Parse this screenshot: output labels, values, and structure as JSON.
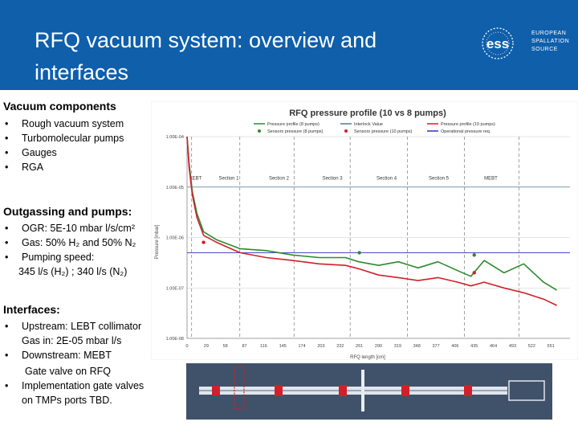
{
  "slide": {
    "title": "RFQ vacuum system: overview and interfaces",
    "logo_text": "ess",
    "logo_name": "EUROPEAN SPALLATION SOURCE",
    "colors": {
      "header": "#0f5fab",
      "accent": "#2e7fc4"
    }
  },
  "components": {
    "heading": "Vacuum components",
    "items": [
      "Rough vacuum system",
      "Turbomolecular pumps",
      "Gauges",
      "RGA"
    ]
  },
  "outgassing": {
    "heading": "Outgassing and pumps:",
    "ogr": "OGR: 5E-10 mbar l/s/cm²",
    "gas": "Gas: 50% H₂ and 50% N₂",
    "speed": "Pumping speed:",
    "speed_values": "345 l/s (H₂) ; 340 l/s (N₂)"
  },
  "interfaces": {
    "heading": "Interfaces:",
    "upstream": "Upstream: LEBT collimator",
    "upstream_gas": "Gas in: 2E-05 mbar l/s",
    "downstream": "Downstream: MEBT",
    "gate_valve": "Gate valve on RFQ",
    "implementation": "Implementation gate valves",
    "implementation_2": "on TMPs ports TBD."
  },
  "chart_data": {
    "type": "line",
    "title": "RFQ pressure profile (10 vs 8 pumps)",
    "xlabel": "RFQ length [cm]",
    "ylabel": "Pressure [mbar]",
    "yscale": "log",
    "ylim": [
      1e-08,
      0.0001
    ],
    "xlim": [
      0,
      580
    ],
    "x_ticks": [
      "0",
      "29",
      "58",
      "87",
      "116",
      "145",
      "174",
      "203",
      "232",
      "261",
      "290",
      "319",
      "348",
      "377",
      "406",
      "435",
      "464",
      "493",
      "522",
      "551"
    ],
    "y_ticks": [
      "1.00E-04",
      "1.00E-05",
      "1.00E-06",
      "1.00E-07",
      "1.00E-08"
    ],
    "section_boundaries": [
      7,
      80,
      162,
      247,
      334,
      420,
      503
    ],
    "sections": [
      {
        "label": "LEBT",
        "x": 4
      },
      {
        "label": "Section 1",
        "x": 48
      },
      {
        "label": "Section 2",
        "x": 124
      },
      {
        "label": "Section 3",
        "x": 205
      },
      {
        "label": "Section 4",
        "x": 287
      },
      {
        "label": "Section 5",
        "x": 366
      },
      {
        "label": "MEBT",
        "x": 450
      }
    ],
    "legend": [
      {
        "name": "Pressure profile (8 pumps)",
        "color": "#2e8b2e",
        "kind": "line"
      },
      {
        "name": "Interlock Value",
        "color": "#4d7a8c",
        "kind": "line"
      },
      {
        "name": "Pressure profile (10 pumps)",
        "color": "#d0202a",
        "kind": "line"
      },
      {
        "name": "Sensors pressure (8 pumps)",
        "color": "#2e8b2e",
        "kind": "dot"
      },
      {
        "name": "Sensors pressure (10 pumps)",
        "color": "#d0202a",
        "kind": "dot"
      },
      {
        "name": "Operational pressure req.",
        "color": "#3030c8",
        "kind": "line"
      }
    ],
    "interlock_value": 1e-05,
    "operational_req": 5e-07,
    "series": [
      {
        "name": "Pressure profile (8 pumps)",
        "color": "#2e8b2e",
        "x": [
          0,
          3,
          8,
          15,
          25,
          45,
          80,
          120,
          160,
          200,
          240,
          260,
          290,
          320,
          350,
          380,
          410,
          430,
          450,
          480,
          510,
          540,
          560
        ],
        "y": [
          0.0001,
          3e-05,
          8e-06,
          3e-06,
          1.3e-06,
          9e-07,
          6e-07,
          5.5e-07,
          4.5e-07,
          4e-07,
          4e-07,
          3.3e-07,
          2.8e-07,
          3.3e-07,
          2.5e-07,
          3.3e-07,
          2.2e-07,
          1.7e-07,
          3.5e-07,
          2e-07,
          3e-07,
          1.3e-07,
          9e-08
        ]
      },
      {
        "name": "Pressure profile (10 pumps)",
        "color": "#d0202a",
        "x": [
          0,
          3,
          8,
          15,
          25,
          45,
          80,
          120,
          160,
          200,
          240,
          260,
          290,
          320,
          350,
          380,
          410,
          430,
          450,
          480,
          510,
          540,
          560
        ],
        "y": [
          0.0001,
          2.5e-05,
          7e-06,
          2.5e-06,
          1.1e-06,
          8e-07,
          5e-07,
          4e-07,
          3.5e-07,
          3e-07,
          2.8e-07,
          2.4e-07,
          1.8e-07,
          1.6e-07,
          1.4e-07,
          1.6e-07,
          1.3e-07,
          1.1e-07,
          1.3e-07,
          1e-07,
          8e-08,
          6e-08,
          4.5e-08
        ]
      }
    ],
    "sensors_8_pumps": {
      "x": [
        261,
        435
      ],
      "y": [
        5e-07,
        4.5e-07
      ]
    },
    "sensors_10_pumps": {
      "x": [
        25,
        435
      ],
      "y": [
        8e-07,
        2e-07
      ]
    }
  }
}
